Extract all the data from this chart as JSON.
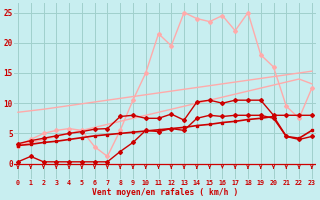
{
  "bg_color": "#c8eef0",
  "grid_color": "#a0d0cc",
  "red_dark": "#cc0000",
  "red_medium": "#ee4444",
  "pink_light": "#ffaaaa",
  "pink_very_light": "#ffcccc",
  "xlabel": "Vent moyen/en rafales ( km/h )",
  "x_ticks": [
    0,
    1,
    2,
    3,
    4,
    5,
    6,
    7,
    8,
    9,
    10,
    11,
    12,
    13,
    14,
    15,
    16,
    17,
    18,
    19,
    20,
    21,
    22,
    23
  ],
  "yticks": [
    0,
    5,
    10,
    15,
    20,
    25
  ],
  "ylim": [
    -2.5,
    26.5
  ],
  "xlim": [
    -0.3,
    23.3
  ],
  "line_upper1_y": [
    8.5,
    8.75,
    9.0,
    9.3,
    9.6,
    9.9,
    10.2,
    10.5,
    10.8,
    11.1,
    11.4,
    11.7,
    12.0,
    12.3,
    12.6,
    12.9,
    13.2,
    13.5,
    13.8,
    14.1,
    14.4,
    14.7,
    15.0,
    15.3
  ],
  "line_upper1_color": "#ffaaaa",
  "line_upper1_lw": 1.0,
  "line_upper2_y": [
    3.0,
    3.5,
    4.0,
    4.5,
    5.0,
    5.5,
    6.0,
    6.5,
    7.0,
    7.5,
    8.0,
    8.5,
    9.0,
    9.5,
    10.0,
    10.5,
    11.0,
    11.5,
    12.0,
    12.5,
    13.0,
    13.5,
    14.0,
    13.2
  ],
  "line_upper2_color": "#ffaaaa",
  "line_upper2_lw": 1.0,
  "line_spiky_y": [
    3.0,
    4.0,
    5.0,
    5.5,
    5.8,
    5.5,
    2.8,
    1.2,
    5.5,
    10.5,
    15.0,
    21.5,
    19.5,
    25.0,
    24.0,
    23.5,
    24.5,
    22.0,
    25.0,
    18.0,
    16.0,
    9.5,
    7.5,
    12.5
  ],
  "line_spiky_color": "#ffaaaa",
  "line_spiky_lw": 1.0,
  "line_spiky_marker": "D",
  "line_spiky_ms": 2.0,
  "line_med1_y": [
    3.3,
    3.8,
    4.2,
    4.6,
    5.0,
    5.3,
    5.7,
    5.8,
    7.8,
    8.0,
    7.5,
    7.5,
    8.2,
    7.2,
    10.2,
    10.5,
    10.0,
    10.5,
    10.5,
    10.5,
    8.0,
    8.0,
    8.0,
    8.0
  ],
  "line_med1_color": "#cc0000",
  "line_med1_lw": 1.0,
  "line_med1_marker": "D",
  "line_med1_ms": 2.0,
  "line_med2_y": [
    3.0,
    3.2,
    3.5,
    3.7,
    4.0,
    4.3,
    4.6,
    4.8,
    5.0,
    5.2,
    5.4,
    5.6,
    5.8,
    6.0,
    6.3,
    6.5,
    6.8,
    7.0,
    7.3,
    7.5,
    7.8,
    4.5,
    4.2,
    5.5
  ],
  "line_med2_color": "#cc0000",
  "line_med2_lw": 1.2,
  "line_med2_marker": "s",
  "line_med2_ms": 1.8,
  "line_low_y": [
    0.3,
    1.2,
    0.3,
    0.3,
    0.3,
    0.3,
    0.3,
    0.3,
    2.0,
    3.5,
    5.5,
    5.3,
    5.8,
    5.5,
    7.5,
    8.0,
    7.8,
    8.0,
    8.0,
    8.0,
    7.5,
    4.5,
    4.0,
    4.5
  ],
  "line_low_color": "#cc0000",
  "line_low_lw": 1.0,
  "line_low_marker": "D",
  "line_low_ms": 2.0
}
